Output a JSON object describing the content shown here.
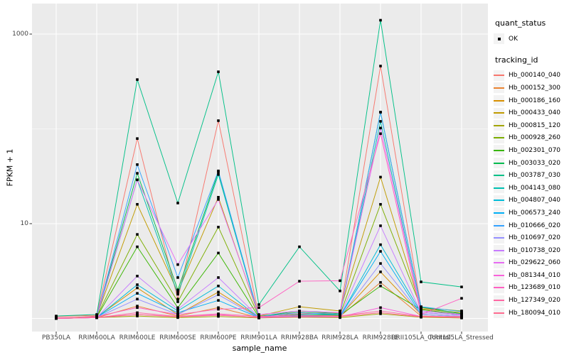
{
  "chart_data": {
    "type": "line",
    "title": "",
    "xlabel": "sample_name",
    "ylabel": "FPKM + 1",
    "y_scale": "log10",
    "ylim": [
      1,
      1500
    ],
    "grid": true,
    "legend_position": "right",
    "x_categories": [
      "PB350LA",
      "RRIM600LA",
      "RRIM600LE",
      "RRIM600SE",
      "RRIM600PE",
      "RRIM901LA",
      "RRIM928BA",
      "RRIM928LA",
      "RRIM928LE",
      "RRII105LA_Control",
      "RRII105LA_Stressed"
    ],
    "y_ticks": [
      {
        "value": 10,
        "label": "10"
      },
      {
        "value": 1000,
        "label": "1000"
      }
    ],
    "y_gridlines_major": [
      1,
      10,
      1000
    ],
    "y_gridlines_minor": [
      100
    ],
    "legend": {
      "quant_status_title": "quant_status",
      "quant_status_items": [
        {
          "label": "OK",
          "symbol": "point"
        }
      ],
      "tracking_id_title": "tracking_id"
    },
    "colors": {
      "panel_bg": "#EBEBEB",
      "grid": "#FFFFFF",
      "point": "#000000",
      "axis_text": "#444444"
    },
    "series": [
      {
        "name": "Hb_000140_040",
        "color": "#F8766D",
        "values": [
          1.05,
          1.08,
          79,
          1.6,
          122,
          1.06,
          1.12,
          1.15,
          460,
          1.3,
          1.12
        ]
      },
      {
        "name": "Hb_000152_300",
        "color": "#EA8331",
        "values": [
          1.0,
          1.02,
          1.35,
          1.06,
          1.3,
          1.02,
          1.05,
          1.05,
          2.4,
          1.06,
          1.03
        ]
      },
      {
        "name": "Hb_000186_160",
        "color": "#D89000",
        "values": [
          1.0,
          1.03,
          2.1,
          1.1,
          1.9,
          1.03,
          1.08,
          1.06,
          3.1,
          1.1,
          1.05
        ]
      },
      {
        "name": "Hb_000433_040",
        "color": "#C09B00",
        "values": [
          1.0,
          1.06,
          16.0,
          1.9,
          19.0,
          1.06,
          1.33,
          1.2,
          31.0,
          1.26,
          1.15
        ]
      },
      {
        "name": "Hb_000815_120",
        "color": "#A3A500",
        "values": [
          1.0,
          1.02,
          1.06,
          1.02,
          1.05,
          1.01,
          1.03,
          1.02,
          1.12,
          1.03,
          1.01
        ]
      },
      {
        "name": "Hb_000928_260",
        "color": "#7CAE00",
        "values": [
          1.0,
          1.05,
          7.7,
          1.5,
          9.2,
          1.05,
          1.16,
          1.1,
          16.0,
          1.3,
          1.2
        ]
      },
      {
        "name": "Hb_002301_070",
        "color": "#39B600",
        "values": [
          1.0,
          1.03,
          5.7,
          1.3,
          4.9,
          1.03,
          1.1,
          1.08,
          2.2,
          1.24,
          1.1
        ]
      },
      {
        "name": "Hb_003033_020",
        "color": "#00BB4E",
        "values": [
          1.0,
          1.05,
          34.0,
          2.0,
          35.0,
          1.05,
          1.2,
          1.12,
          150,
          1.32,
          1.12
        ]
      },
      {
        "name": "Hb_003787_030",
        "color": "#00C087",
        "values": [
          1.06,
          1.1,
          331,
          16.5,
          400,
          1.4,
          5.7,
          1.95,
          1400,
          2.43,
          2.15
        ]
      },
      {
        "name": "Hb_004143_080",
        "color": "#00C0B2",
        "values": [
          1.0,
          1.03,
          29.0,
          1.8,
          33.0,
          1.03,
          1.1,
          1.1,
          120,
          1.2,
          1.1
        ]
      },
      {
        "name": "Hb_004807_040",
        "color": "#00BCD8",
        "values": [
          1.0,
          1.02,
          2.27,
          1.2,
          2.2,
          1.02,
          1.06,
          1.05,
          6.0,
          1.15,
          1.08
        ]
      },
      {
        "name": "Hb_006573_240",
        "color": "#00B0F6",
        "values": [
          1.0,
          1.03,
          1.84,
          1.15,
          1.55,
          1.02,
          1.05,
          1.05,
          5.1,
          1.1,
          1.05
        ]
      },
      {
        "name": "Hb_010666_020",
        "color": "#35A2FF",
        "values": [
          1.0,
          1.05,
          42.0,
          2.7,
          36.0,
          1.05,
          1.15,
          1.1,
          150,
          1.33,
          1.18
        ]
      },
      {
        "name": "Hb_010697_020",
        "color": "#9590FF",
        "values": [
          1.0,
          1.02,
          1.6,
          1.1,
          1.78,
          1.02,
          1.05,
          1.04,
          3.8,
          1.1,
          1.05
        ]
      },
      {
        "name": "Hb_010738_020",
        "color": "#C77CFF",
        "values": [
          1.0,
          1.02,
          2.8,
          1.25,
          2.7,
          1.03,
          1.08,
          1.06,
          9.5,
          1.15,
          1.08
        ]
      },
      {
        "name": "Hb_029622_060",
        "color": "#E76BF3",
        "values": [
          1.0,
          1.05,
          29.0,
          3.7,
          18.0,
          1.1,
          1.2,
          1.15,
          102,
          1.2,
          1.1
        ]
      },
      {
        "name": "Hb_081344_010",
        "color": "#FA62DB",
        "values": [
          1.0,
          1.02,
          1.1,
          1.05,
          1.1,
          1.02,
          1.04,
          1.04,
          1.3,
          1.05,
          1.02
        ]
      },
      {
        "name": "Hb_123689_010",
        "color": "#FF61C2",
        "values": [
          1.0,
          1.05,
          1.3,
          1.1,
          1.25,
          1.3,
          2.47,
          2.5,
          89.0,
          1.1,
          1.63
        ]
      },
      {
        "name": "Hb_127349_020",
        "color": "#FF67A4",
        "values": [
          1.0,
          1.02,
          1.15,
          1.05,
          1.12,
          1.05,
          1.08,
          1.06,
          1.2,
          1.05,
          1.05
        ]
      },
      {
        "name": "Hb_180094_010",
        "color": "#FF6C90",
        "values": [
          1.02,
          1.03,
          1.1,
          1.04,
          1.08,
          1.03,
          1.05,
          1.05,
          1.15,
          1.04,
          1.03
        ]
      }
    ]
  }
}
